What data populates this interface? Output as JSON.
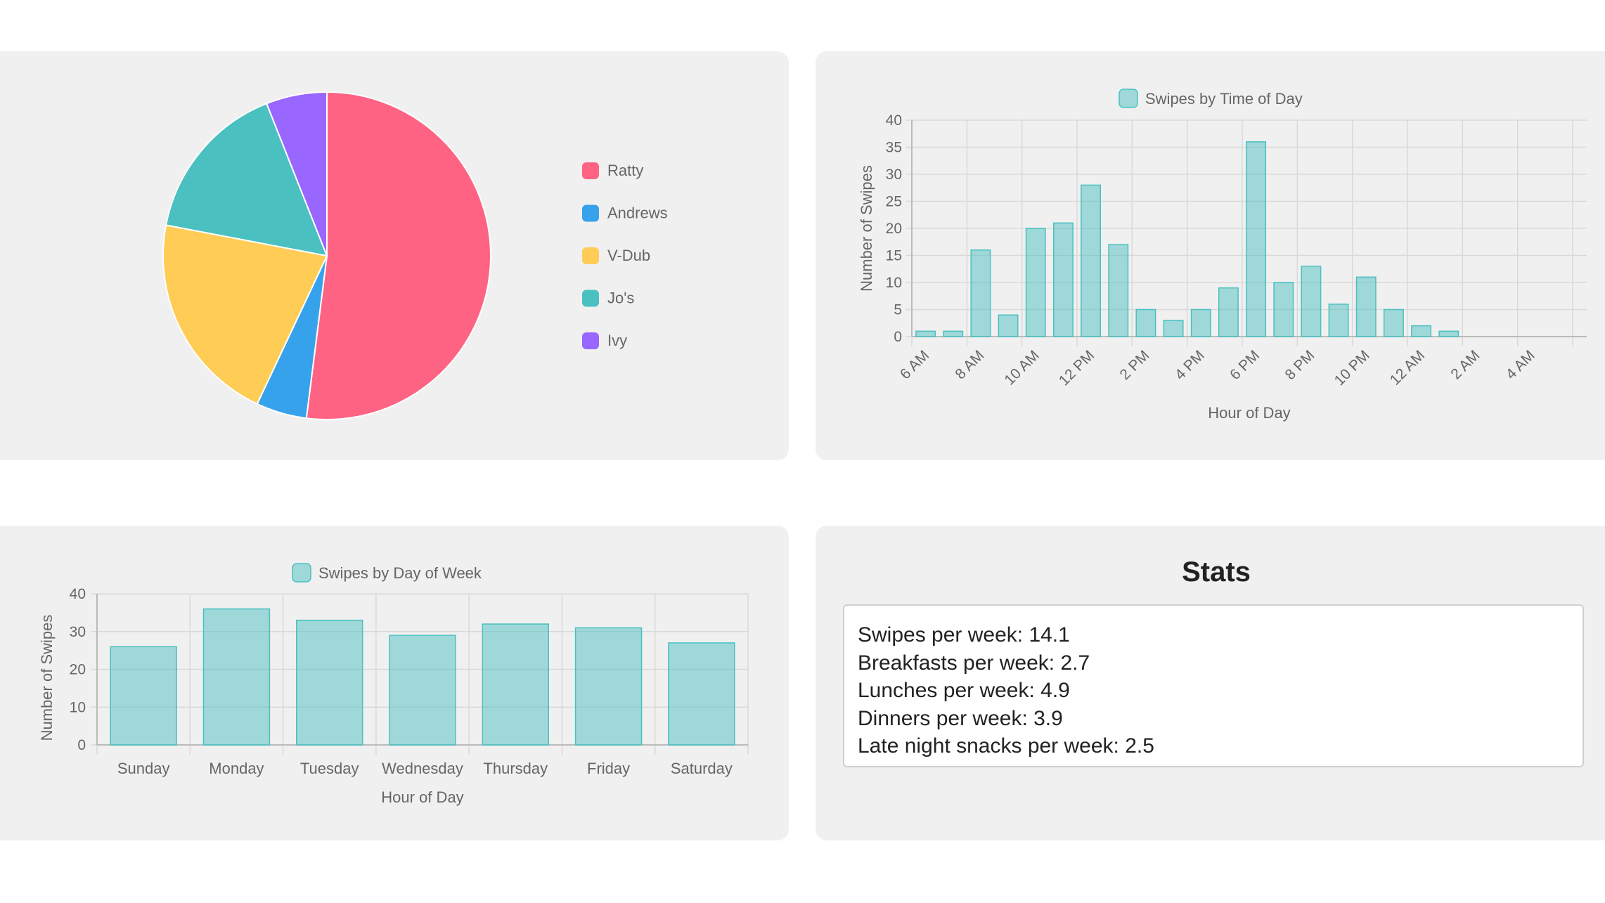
{
  "colors": {
    "page_bg": "#ffffff",
    "panel_bg": "#f0f0f0",
    "bar_fill": "rgba(75,192,192,0.5)",
    "bar_stroke": "#4bc0c0",
    "grid": "#d9d9d9",
    "axis_text": "#666666"
  },
  "chart_data": [
    {
      "type": "pie",
      "categories": [
        "Ratty",
        "Andrews",
        "V-Dub",
        "Jo's",
        "Ivy"
      ],
      "values": [
        52,
        5,
        21,
        16,
        6
      ],
      "colors": [
        "#ff6384",
        "#36a2eb",
        "#ffcd56",
        "#4bc0c0",
        "#9966ff"
      ],
      "legend": "right"
    },
    {
      "type": "bar",
      "legend_label": "Swipes by Time of Day",
      "xlabel": "Hour of Day",
      "ylabel": "Number of Swipes",
      "ylim": [
        0,
        40
      ],
      "yticks": [
        0,
        5,
        10,
        15,
        20,
        25,
        30,
        35,
        40
      ],
      "tick_labels": [
        "6 AM",
        "8 AM",
        "10 AM",
        "12 PM",
        "2 PM",
        "4 PM",
        "6 PM",
        "8 PM",
        "10 PM",
        "12 AM",
        "2 AM",
        "4 AM"
      ],
      "values": [
        1,
        1,
        16,
        4,
        20,
        21,
        28,
        17,
        5,
        3,
        5,
        9,
        36,
        10,
        13,
        6,
        11,
        5,
        2,
        1,
        0,
        0,
        0,
        0
      ],
      "grid": true
    },
    {
      "type": "bar",
      "legend_label": "Swipes by Day of Week",
      "xlabel": "Hour of Day",
      "ylabel": "Number of Swipes",
      "ylim": [
        0,
        40
      ],
      "yticks": [
        0,
        10,
        20,
        30,
        40
      ],
      "categories": [
        "Sunday",
        "Monday",
        "Tuesday",
        "Wednesday",
        "Thursday",
        "Friday",
        "Saturday"
      ],
      "values": [
        26,
        36,
        33,
        29,
        32,
        31,
        27
      ],
      "grid": true
    }
  ],
  "stats": {
    "title": "Stats",
    "lines": [
      "Swipes per week: 14.1",
      "Breakfasts per week: 2.7",
      "Lunches per week: 4.9",
      "Dinners per week: 3.9",
      "Late night snacks per week: 2.5"
    ]
  }
}
